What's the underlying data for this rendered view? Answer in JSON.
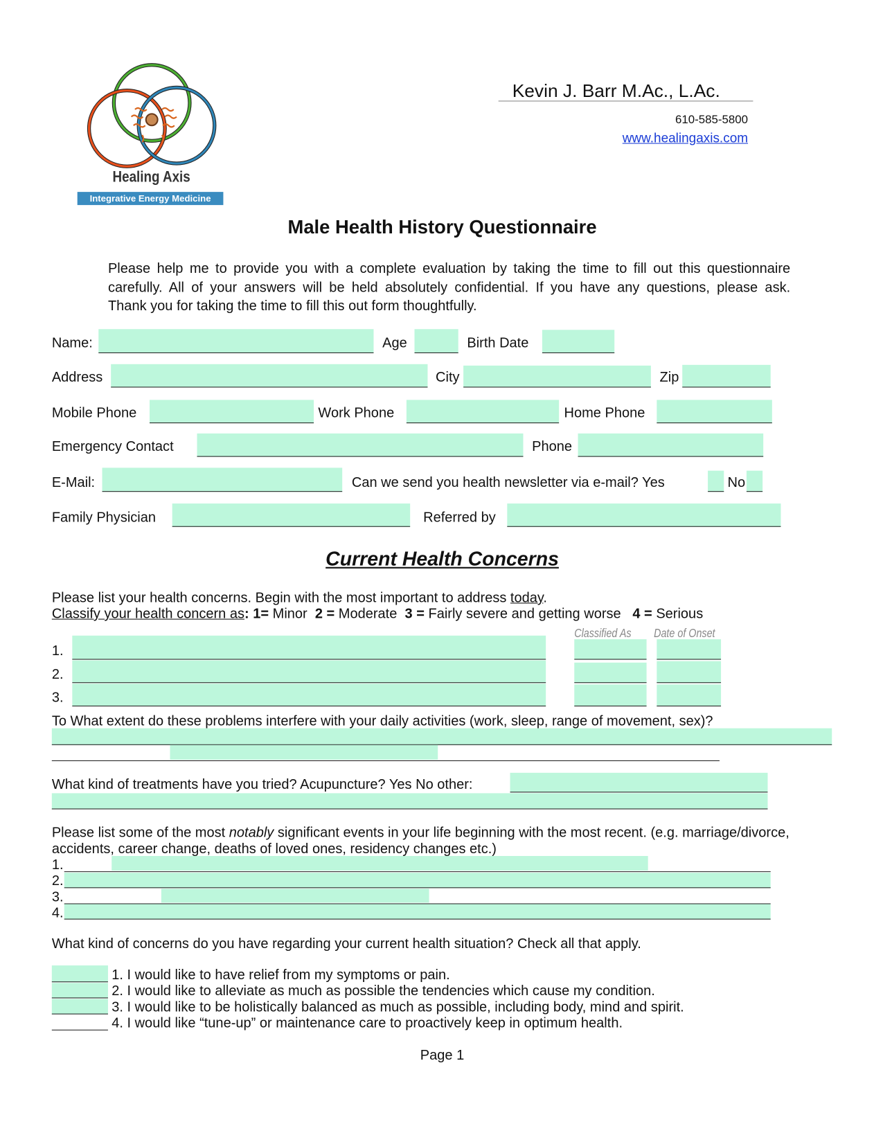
{
  "header": {
    "practitioner": "Kevin J. Barr M.Ac., L.Ac.",
    "phone": "610-585-5800",
    "website": "www.healingaxis.com"
  },
  "logo": {
    "name": "Healing Axis",
    "tagline": "Integrative Energy Medicine",
    "colors": {
      "green": "#4caf32",
      "orange": "#e8501c",
      "blue": "#2f86b8",
      "banner": "#3a8cc0"
    }
  },
  "title": "Male Health History Questionnaire",
  "intro": [
    "Please help me to provide you with a complete evaluation by taking the time to fill out this questionnaire",
    "carefully. All of your answers will be held absolutely confidential. If you have any questions, please ask.",
    "Thank you for taking the time to fill this out form thoughtfully."
  ],
  "fields": {
    "name": "Name:",
    "age": "Age",
    "birth_date": "Birth Date",
    "address": "Address",
    "city": "City",
    "zip": "Zip",
    "mobile_phone": "Mobile Phone",
    "work_phone": "Work Phone",
    "home_phone": "Home Phone",
    "emergency_contact": "Emergency Contact",
    "phone": "Phone",
    "email": "E-Mail:",
    "newsletter_question": "Can we send you health newsletter via e-mail? Yes",
    "newsletter_no": "No",
    "family_physician": "Family Physician",
    "referred_by": "Referred by"
  },
  "concerns": {
    "heading": "Current Health Concerns",
    "instruction": "Please list your health concerns.  Begin with the most important to address ",
    "instruction_today": "today",
    "classify_label": "Classify your health concern as",
    "scale": [
      {
        "num": "1=",
        "label": " Minor"
      },
      {
        "num": "2 =",
        "label": " Moderate"
      },
      {
        "num": "3 =",
        "label": " Fairly severe and getting worse"
      },
      {
        "num": "4 =",
        "label": " Serious"
      }
    ],
    "col_classified": "Classified As",
    "col_onset": "Date of Onset",
    "rows": [
      "1.",
      "2.",
      "3."
    ],
    "extent_question": "To What extent do these problems interfere with your daily activities (work, sleep, range of movement, sex)?",
    "treatments_question": "What kind of treatments have you tried? Acupuncture? Yes    No   other:",
    "events_question_pre": "Please list some of the most ",
    "events_question_em": "notably",
    "events_question_post": " significant events in your life beginning with the most recent. (e.g. marriage/divorce,",
    "events_question_line2": "accidents, career change, deaths of loved ones, residency changes etc.)",
    "event_rows": [
      "1.",
      "2.",
      "3.",
      "4."
    ],
    "check_question": "What  kind of concerns do you have regarding your current health situation? Check all that apply.",
    "check_items": [
      "1. I would like to have relief from my symptoms or pain.",
      "2. I would like to alleviate as much as possible the tendencies which cause my condition.",
      "3. I would like to be holistically balanced as much as possible, including body, mind and spirit.",
      "4. I would like “tune-up” or maintenance care to proactively keep in optimum health."
    ]
  },
  "footer": {
    "page": "Page 1"
  },
  "colors": {
    "field_fill": "#bdf7dc",
    "link": "#1a3cd6"
  }
}
